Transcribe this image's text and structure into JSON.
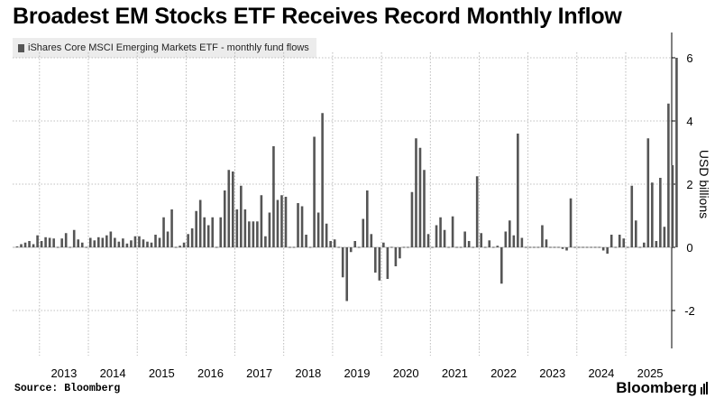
{
  "title": "Broadest EM Stocks ETF Receives Record Monthly Inflow",
  "legend": {
    "label": "iShares Core MSCI Emerging Markets ETF - monthly fund flows"
  },
  "source": "Source: Bloomberg",
  "brand": "Bloomberg",
  "colors": {
    "bar": "#555555",
    "grid": "#aaaaaa",
    "axis": "#000000"
  },
  "chart_data": {
    "type": "bar",
    "title": "Broadest EM Stocks ETF Receives Record Monthly Inflow",
    "ylabel": "USD billions",
    "xlabel": "",
    "ylim": [
      -3.2,
      6.8
    ],
    "yticks": [
      -2,
      0,
      2,
      4,
      6
    ],
    "grid": true,
    "start": "2012-07",
    "years": [
      "2013",
      "2014",
      "2015",
      "2016",
      "2017",
      "2018",
      "2019",
      "2020",
      "2021",
      "2022",
      "2023",
      "2024",
      "2025"
    ],
    "series": [
      {
        "name": "iShares Core MSCI Emerging Markets ETF - monthly fund flows",
        "values": [
          0.03,
          0.1,
          0.15,
          0.2,
          0.1,
          0.38,
          0.2,
          0.32,
          0.3,
          0.28,
          0.0,
          0.28,
          0.45,
          0.0,
          0.55,
          0.25,
          0.15,
          0.0,
          0.3,
          0.22,
          0.32,
          0.3,
          0.38,
          0.5,
          0.3,
          0.18,
          0.28,
          0.12,
          0.22,
          0.35,
          0.35,
          0.25,
          0.18,
          0.15,
          0.4,
          0.3,
          0.95,
          0.5,
          1.2,
          0.0,
          0.05,
          0.15,
          0.42,
          0.6,
          1.15,
          1.5,
          0.95,
          0.7,
          0.95,
          0.0,
          0.95,
          1.8,
          2.45,
          2.4,
          1.2,
          1.95,
          1.2,
          0.82,
          0.82,
          0.82,
          1.65,
          0.35,
          1.1,
          3.2,
          1.5,
          1.65,
          1.6,
          0.0,
          0.0,
          1.4,
          1.3,
          0.4,
          0.0,
          3.5,
          1.1,
          4.25,
          0.75,
          0.2,
          0.25,
          0.0,
          -0.95,
          -1.7,
          -0.15,
          0.2,
          0.0,
          0.9,
          1.8,
          0.42,
          -0.8,
          -1.05,
          0.15,
          -1.0,
          0.0,
          -0.6,
          -0.35,
          0.0,
          0.0,
          1.75,
          3.45,
          3.15,
          2.45,
          0.42,
          0.0,
          0.7,
          0.95,
          0.55,
          0.0,
          0.98,
          0.0,
          0.0,
          0.5,
          0.2,
          0.0,
          2.25,
          0.45,
          0.0,
          0.22,
          0.0,
          0.05,
          -1.15,
          0.5,
          0.85,
          0.38,
          3.6,
          0.3,
          0.0,
          0.0,
          0.0,
          0.0,
          0.7,
          0.25,
          0.0,
          0.0,
          0.0,
          -0.05,
          -0.1,
          1.55,
          0.0,
          0.0,
          0.0,
          0.0,
          0.0,
          0.0,
          0.0,
          -0.1,
          -0.2,
          0.4,
          0.0,
          0.4,
          0.28,
          0.0,
          1.95,
          0.85,
          0.0,
          0.15,
          3.45,
          2.05,
          0.2,
          2.2,
          0.65,
          4.55,
          2.6,
          6.0
        ]
      }
    ]
  }
}
